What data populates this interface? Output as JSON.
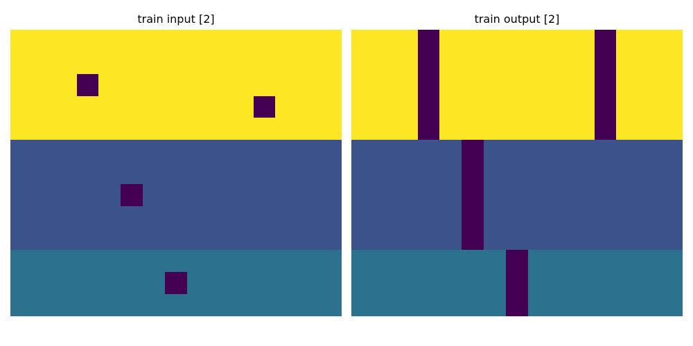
{
  "panels": [
    {
      "title": "train input [2]"
    },
    {
      "title": "train output [2]"
    }
  ],
  "palette": {
    "1": "#fde725",
    "2": "#3b528b",
    "3": "#2c728e",
    "0": "#440154"
  },
  "grids": {
    "input": [
      [
        1,
        1,
        1,
        1,
        1,
        1,
        1,
        1,
        1,
        1,
        1,
        1,
        1,
        1,
        1
      ],
      [
        1,
        1,
        1,
        1,
        1,
        1,
        1,
        1,
        1,
        1,
        1,
        1,
        1,
        1,
        1
      ],
      [
        1,
        1,
        1,
        0,
        1,
        1,
        1,
        1,
        1,
        1,
        1,
        1,
        1,
        1,
        1
      ],
      [
        1,
        1,
        1,
        1,
        1,
        1,
        1,
        1,
        1,
        1,
        1,
        0,
        1,
        1,
        1
      ],
      [
        1,
        1,
        1,
        1,
        1,
        1,
        1,
        1,
        1,
        1,
        1,
        1,
        1,
        1,
        1
      ],
      [
        2,
        2,
        2,
        2,
        2,
        2,
        2,
        2,
        2,
        2,
        2,
        2,
        2,
        2,
        2
      ],
      [
        2,
        2,
        2,
        2,
        2,
        2,
        2,
        2,
        2,
        2,
        2,
        2,
        2,
        2,
        2
      ],
      [
        2,
        2,
        2,
        2,
        2,
        0,
        2,
        2,
        2,
        2,
        2,
        2,
        2,
        2,
        2
      ],
      [
        2,
        2,
        2,
        2,
        2,
        2,
        2,
        2,
        2,
        2,
        2,
        2,
        2,
        2,
        2
      ],
      [
        2,
        2,
        2,
        2,
        2,
        2,
        2,
        2,
        2,
        2,
        2,
        2,
        2,
        2,
        2
      ],
      [
        3,
        3,
        3,
        3,
        3,
        3,
        3,
        3,
        3,
        3,
        3,
        3,
        3,
        3,
        3
      ],
      [
        3,
        3,
        3,
        3,
        3,
        3,
        3,
        0,
        3,
        3,
        3,
        3,
        3,
        3,
        3
      ],
      [
        3,
        3,
        3,
        3,
        3,
        3,
        3,
        3,
        3,
        3,
        3,
        3,
        3,
        3,
        3
      ]
    ],
    "output": [
      [
        1,
        1,
        1,
        0,
        1,
        1,
        1,
        1,
        1,
        1,
        1,
        0,
        1,
        1,
        1
      ],
      [
        1,
        1,
        1,
        0,
        1,
        1,
        1,
        1,
        1,
        1,
        1,
        0,
        1,
        1,
        1
      ],
      [
        1,
        1,
        1,
        0,
        1,
        1,
        1,
        1,
        1,
        1,
        1,
        0,
        1,
        1,
        1
      ],
      [
        1,
        1,
        1,
        0,
        1,
        1,
        1,
        1,
        1,
        1,
        1,
        0,
        1,
        1,
        1
      ],
      [
        1,
        1,
        1,
        0,
        1,
        1,
        1,
        1,
        1,
        1,
        1,
        0,
        1,
        1,
        1
      ],
      [
        2,
        2,
        2,
        2,
        2,
        0,
        2,
        2,
        2,
        2,
        2,
        2,
        2,
        2,
        2
      ],
      [
        2,
        2,
        2,
        2,
        2,
        0,
        2,
        2,
        2,
        2,
        2,
        2,
        2,
        2,
        2
      ],
      [
        2,
        2,
        2,
        2,
        2,
        0,
        2,
        2,
        2,
        2,
        2,
        2,
        2,
        2,
        2
      ],
      [
        2,
        2,
        2,
        2,
        2,
        0,
        2,
        2,
        2,
        2,
        2,
        2,
        2,
        2,
        2
      ],
      [
        2,
        2,
        2,
        2,
        2,
        0,
        2,
        2,
        2,
        2,
        2,
        2,
        2,
        2,
        2
      ],
      [
        3,
        3,
        3,
        3,
        3,
        3,
        3,
        0,
        3,
        3,
        3,
        3,
        3,
        3,
        3
      ],
      [
        3,
        3,
        3,
        3,
        3,
        3,
        3,
        0,
        3,
        3,
        3,
        3,
        3,
        3,
        3
      ],
      [
        3,
        3,
        3,
        3,
        3,
        3,
        3,
        0,
        3,
        3,
        3,
        3,
        3,
        3,
        3
      ]
    ]
  }
}
